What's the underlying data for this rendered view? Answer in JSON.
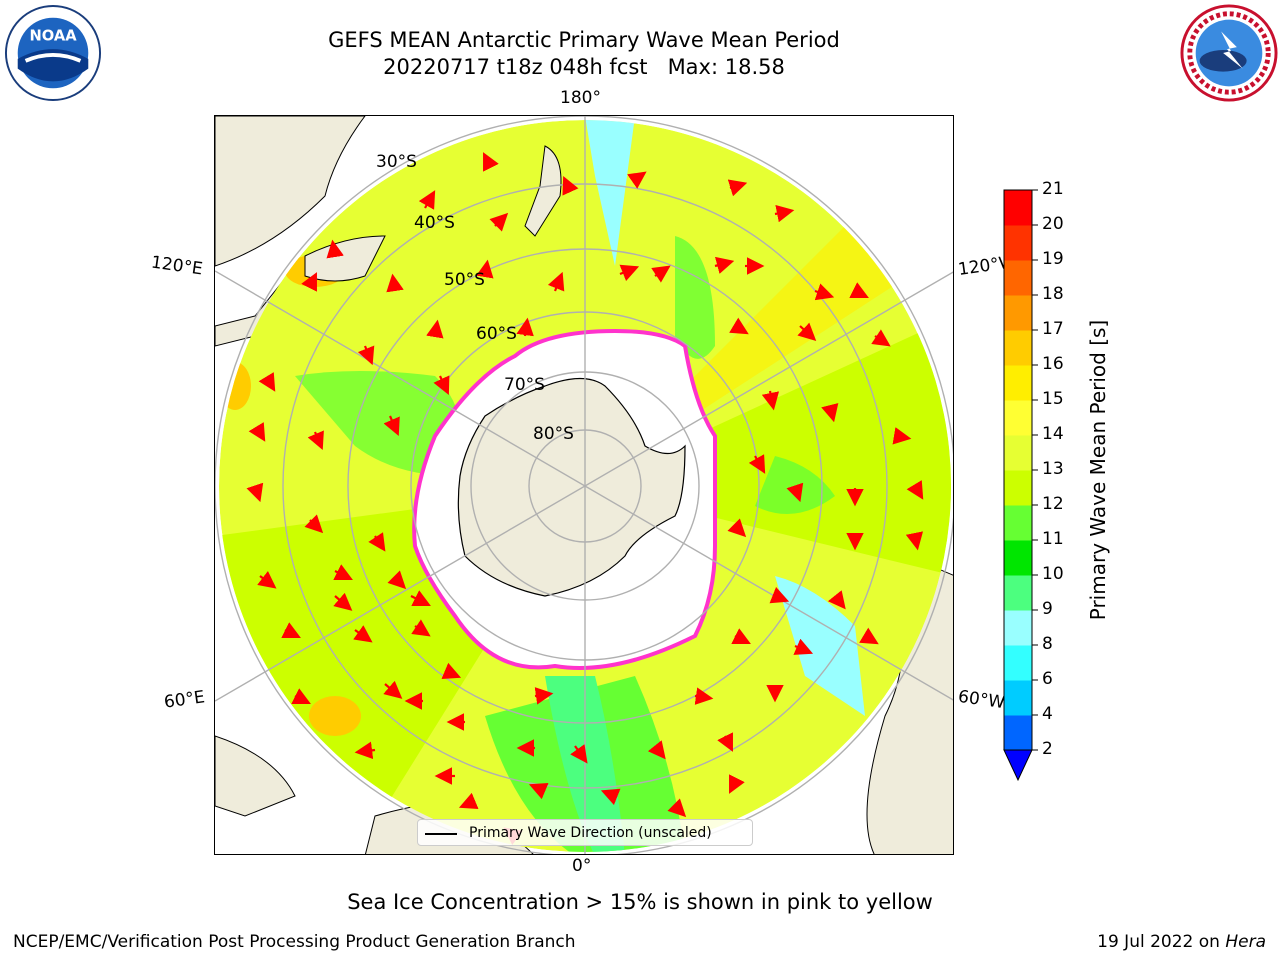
{
  "header": {
    "title_line1": "GEFS MEAN Antarctic Primary Wave Mean Period",
    "title_line2": "20220717 t18z 048h fcst   Max: 18.58"
  },
  "logos": {
    "noaa": {
      "text": "NOAA",
      "ring_text": "NATIONAL OCEANIC AND ATMOSPHERIC ADMINISTRATION · U.S. DEPARTMENT OF COMMERCE"
    },
    "nws": {
      "ring_text": "NATIONAL WEATHER SERVICE"
    }
  },
  "map": {
    "projection": "south-polar-stereographic",
    "lon_labels": {
      "top": "180°",
      "bottom": "0°",
      "left_upper": "120°E",
      "left_lower": "60°E",
      "right_upper": "120°W",
      "right_lower": "60°W"
    },
    "lat_labels": [
      "30°S",
      "40°S",
      "50°S",
      "60°S",
      "70°S",
      "80°S"
    ],
    "legend": "Primary Wave Direction (unscaled)",
    "colors": {
      "land": "#efecdb",
      "sea_ice": "#ffffff",
      "ice_edge": "#ff33cc",
      "arrow": "#ff0000",
      "graticule": "#b0b0b0"
    }
  },
  "colorbar": {
    "label": "Primary Wave Mean Period [s]",
    "ticks": [
      "2",
      "4",
      "6",
      "8",
      "9",
      "10",
      "11",
      "12",
      "13",
      "14",
      "15",
      "16",
      "17",
      "18",
      "19",
      "20",
      "21"
    ],
    "colors": [
      "#0066ff",
      "#00ccff",
      "#33ffff",
      "#99ffff",
      "#4cff7f",
      "#00e600",
      "#66ff33",
      "#ccff00",
      "#e6ff33",
      "#ffff33",
      "#ffee00",
      "#ffcc00",
      "#ff9900",
      "#ff6600",
      "#ff3300",
      "#ff0000"
    ],
    "under_color": "#0000ff"
  },
  "caption": "Sea Ice Concentration > 15% is shown in pink to yellow",
  "footer": {
    "left": "NCEP/EMC/Verification Post Processing Product Generation Branch",
    "right_date": "19 Jul 2022 on ",
    "right_host": "Hera"
  }
}
